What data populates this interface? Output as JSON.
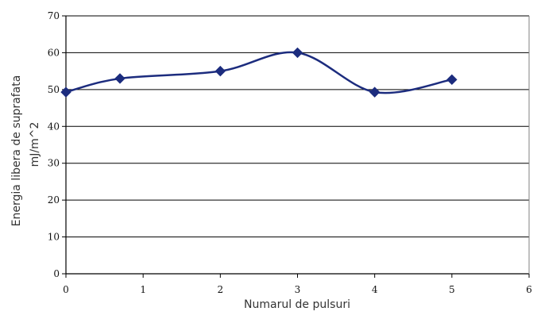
{
  "chart_data": {
    "type": "line",
    "title": "",
    "xlabel": "Numarul de pulsuri",
    "ylabel_line1": "Energia libera de suprafata",
    "ylabel_line2": "mJ/m^2",
    "xlim": [
      0,
      6
    ],
    "ylim": [
      0,
      70
    ],
    "x_ticks": [
      0,
      1,
      2,
      3,
      4,
      5,
      6
    ],
    "y_ticks": [
      0,
      10,
      20,
      30,
      40,
      50,
      60,
      70
    ],
    "grid": "horizontal",
    "series": [
      {
        "color": "#1c2c7e",
        "marker": "diamond",
        "smooth": true,
        "x": [
          0,
          0.7,
          2,
          3,
          4,
          5
        ],
        "y": [
          49.3,
          53,
          55,
          60,
          49.3,
          52.7
        ]
      }
    ]
  }
}
